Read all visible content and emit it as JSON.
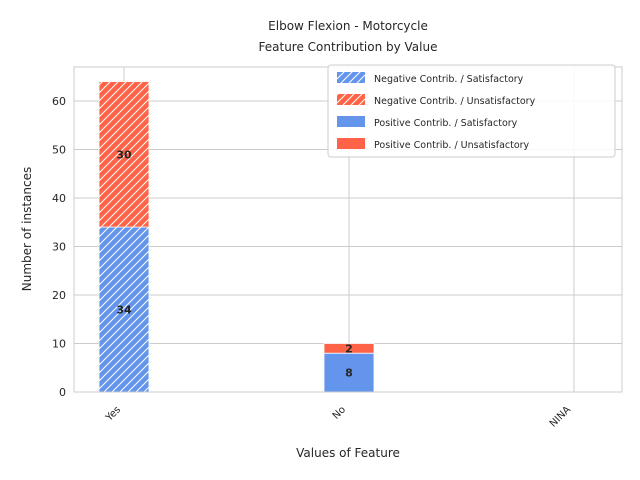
{
  "chart_data": {
    "type": "bar",
    "title": "Elbow Flexion - Motorcycle",
    "subtitle": "Feature Contribution by Value",
    "xlabel": "Values of Feature",
    "ylabel": "Number of instances",
    "categories": [
      "Yes",
      "No",
      "NINA"
    ],
    "ylim": [
      0,
      67
    ],
    "yticks": [
      0,
      10,
      20,
      30,
      40,
      50,
      60
    ],
    "grid": true,
    "legend_position": "top-right",
    "stacked": true,
    "series": [
      {
        "name": "Negative Contrib. / Satisfactory",
        "values": [
          34,
          0,
          0
        ],
        "color": "#6495ED",
        "hatched": true
      },
      {
        "name": "Negative Contrib. / Unsatisfactory",
        "values": [
          30,
          0,
          0
        ],
        "color": "#FF6347",
        "hatched": true
      },
      {
        "name": "Positive Contrib. / Satisfactory",
        "values": [
          0,
          8,
          0
        ],
        "color": "#6495ED",
        "hatched": false
      },
      {
        "name": "Positive Contrib. / Unsatisfactory",
        "values": [
          0,
          2,
          0
        ],
        "color": "#FF6347",
        "hatched": false
      }
    ]
  }
}
